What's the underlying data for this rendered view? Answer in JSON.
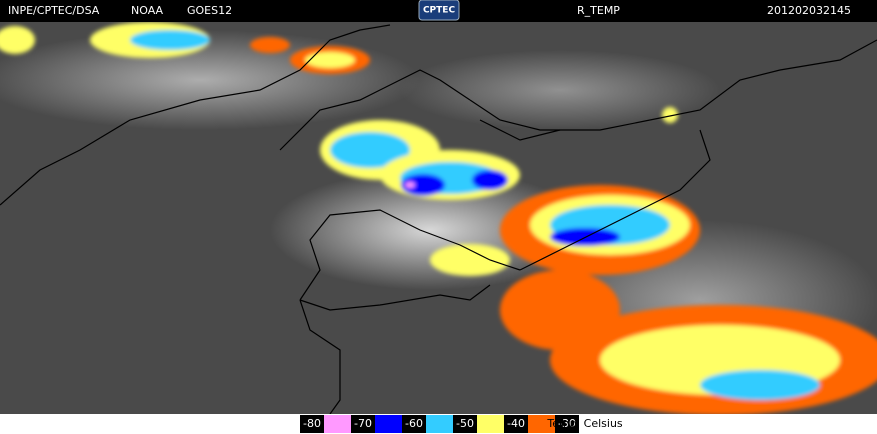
{
  "header": {
    "source": "INPE/CPTEC/DSA",
    "agency": "NOAA",
    "satellite": "GOES12",
    "logo": "CPTEC",
    "product": "R_TEMP",
    "timestamp": "201202032145"
  },
  "legend": {
    "labels": [
      "-80",
      "-70",
      "-60",
      "-50",
      "-40",
      "-30"
    ],
    "colors": [
      "#ff99ff",
      "#0000ff",
      "#33ccff",
      "#ffff66",
      "#ff6600"
    ],
    "unit": "Temp. Celsius"
  }
}
